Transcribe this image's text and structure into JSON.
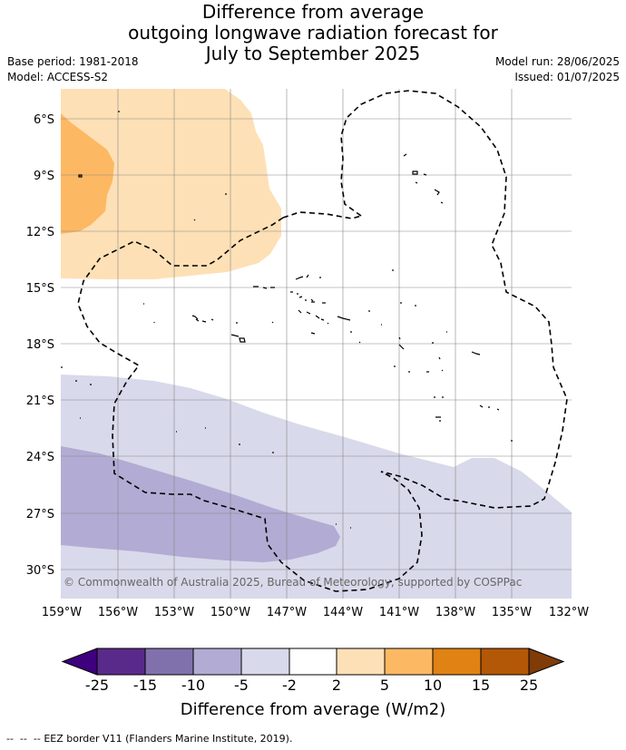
{
  "title": {
    "line1": "Difference from average",
    "line2": "outgoing longwave radiation forecast for",
    "line3": "July to September 2025"
  },
  "meta": {
    "base_period": "Base period: 1981-2018",
    "model": "Model: ACCESS-S2",
    "model_run": "Model run: 28/06/2025",
    "issued": "Issued: 01/07/2025"
  },
  "map": {
    "copyright": "© Commonwealth of Australia 2025, Bureau of Meteorology, supported by COSPPac",
    "lat_labels": [
      "6°S",
      "9°S",
      "12°S",
      "15°S",
      "18°S",
      "21°S",
      "24°S",
      "27°S",
      "30°S"
    ],
    "lon_labels": [
      "159°W",
      "156°W",
      "153°W",
      "150°W",
      "147°W",
      "144°W",
      "141°W",
      "138°W",
      "135°W",
      "132°W"
    ]
  },
  "colorbar": {
    "title": "Difference from average (W/m2)",
    "ticks": [
      "-25",
      "-15",
      "-10",
      "-5",
      "-2",
      "2",
      "5",
      "10",
      "15",
      "25"
    ],
    "colors": {
      "under": "#3f007d",
      "c1": "#5a2a8a",
      "c2": "#8071ad",
      "c3": "#b2abd3",
      "c4": "#d8d9ea",
      "c5": "#ffffff",
      "c6": "#fee0b6",
      "c7": "#fdb863",
      "c8": "#e08214",
      "c9": "#b35806",
      "over": "#7f3b08"
    }
  },
  "footer": {
    "legend_note": "EEZ border V11 (Flanders Marine Institute, 2019)."
  }
}
